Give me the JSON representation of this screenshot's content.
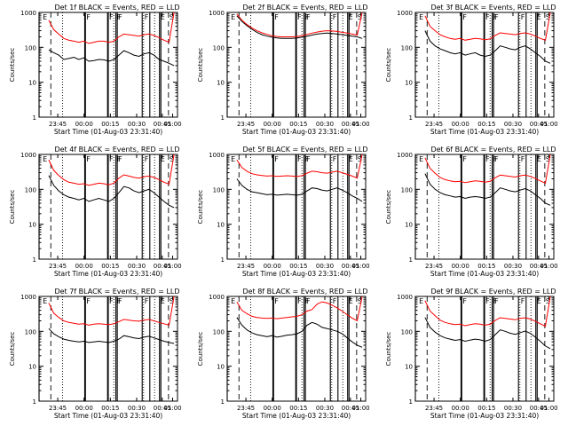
{
  "figure": {
    "ylabel": "Counts/sec",
    "xlabel": "Start Time (01-Aug-03 23:31:40)",
    "colors": {
      "events": "#000000",
      "lld": "#ff0000",
      "axes": "#000000"
    }
  },
  "chart_data": [
    {
      "type": "line",
      "title": "Det 1f BLACK = Events, RED = LLD",
      "ylabel": "Counts/sec",
      "xlabel": "Start Time (01-Aug-03 23:31:40)",
      "yscale": "log",
      "ylim": [
        1,
        1000
      ],
      "yticks": [
        "1",
        "10",
        "100",
        "1000"
      ],
      "xticks": [
        "23:45",
        "00:00",
        "00:15",
        "00:30",
        "00:45",
        "01:00"
      ],
      "marker_labels": [
        "E",
        "F",
        "F",
        "F",
        "F",
        "F",
        "E",
        "S"
      ],
      "series": [
        {
          "name": "Events",
          "values": [
            85,
            70,
            60,
            45,
            48,
            52,
            45,
            50,
            40,
            42,
            45,
            44,
            40,
            45,
            60,
            80,
            70,
            60,
            55,
            65,
            70,
            60,
            45,
            40,
            35,
            30
          ]
        },
        {
          "name": "LLD",
          "values": [
            600,
            320,
            240,
            180,
            160,
            150,
            140,
            150,
            130,
            140,
            150,
            150,
            140,
            150,
            200,
            240,
            230,
            220,
            210,
            230,
            240,
            220,
            190,
            160,
            140,
            1000
          ]
        }
      ]
    },
    {
      "type": "line",
      "title": "Det 2f BLACK = Events, RED = LLD",
      "ylabel": "Counts/sec",
      "xlabel": "Start Time (01-Aug-03 23:31:40)",
      "yscale": "log",
      "ylim": [
        1,
        1000
      ],
      "yticks": [
        "1",
        "10",
        "100",
        "1000"
      ],
      "xticks": [
        "23:45",
        "00:00",
        "00:15",
        "00:30",
        "00:45",
        "01:00"
      ],
      "marker_labels": [
        "E",
        "F",
        "F",
        "F",
        "F",
        "F",
        "E",
        "S"
      ],
      "series": [
        {
          "name": "Events",
          "values": [
            800,
            550,
            420,
            330,
            270,
            230,
            210,
            195,
            185,
            180,
            180,
            180,
            185,
            195,
            210,
            225,
            240,
            250,
            255,
            250,
            240,
            230,
            220,
            210,
            200,
            180
          ]
        },
        {
          "name": "LLD",
          "values": [
            900,
            600,
            450,
            360,
            300,
            260,
            235,
            215,
            205,
            200,
            200,
            200,
            205,
            215,
            235,
            255,
            275,
            290,
            300,
            295,
            285,
            270,
            255,
            240,
            225,
            1000
          ]
        }
      ]
    },
    {
      "type": "line",
      "title": "Det 3f BLACK = Events, RED = LLD",
      "ylabel": "Counts/sec",
      "xlabel": "Start Time (01-Aug-03 23:31:40)",
      "yscale": "log",
      "ylim": [
        1,
        1000
      ],
      "yticks": [
        "1",
        "10",
        "100",
        "1000"
      ],
      "xticks": [
        "23:45",
        "00:00",
        "00:15",
        "00:30",
        "00:45",
        "01:00"
      ],
      "marker_labels": [
        "E",
        "F",
        "F",
        "F",
        "F",
        "F",
        "E",
        "S"
      ],
      "series": [
        {
          "name": "Events",
          "values": [
            300,
            150,
            110,
            90,
            80,
            70,
            65,
            70,
            60,
            65,
            70,
            60,
            55,
            60,
            80,
            110,
            100,
            90,
            85,
            100,
            110,
            90,
            70,
            55,
            40,
            35
          ]
        },
        {
          "name": "LLD",
          "values": [
            800,
            400,
            300,
            230,
            200,
            180,
            170,
            180,
            160,
            170,
            180,
            175,
            165,
            175,
            220,
            260,
            250,
            240,
            230,
            250,
            260,
            240,
            210,
            180,
            160,
            1000
          ]
        }
      ]
    },
    {
      "type": "line",
      "title": "Det 4f BLACK = Events, RED = LLD",
      "ylabel": "Counts/sec",
      "xlabel": "Start Time (01-Aug-03 23:31:40)",
      "yscale": "log",
      "ylim": [
        1,
        1000
      ],
      "yticks": [
        "1",
        "10",
        "100",
        "1000"
      ],
      "xticks": [
        "23:45",
        "00:00",
        "00:15",
        "00:30",
        "00:45",
        "01:00"
      ],
      "marker_labels": [
        "E",
        "F",
        "F",
        "F",
        "F",
        "F",
        "E",
        "S"
      ],
      "series": [
        {
          "name": "Events",
          "values": [
            250,
            130,
            90,
            70,
            60,
            55,
            50,
            55,
            45,
            50,
            55,
            50,
            45,
            55,
            80,
            120,
            110,
            90,
            80,
            90,
            100,
            80,
            60,
            45,
            35,
            30
          ]
        },
        {
          "name": "LLD",
          "values": [
            700,
            350,
            250,
            190,
            160,
            150,
            140,
            145,
            130,
            140,
            150,
            145,
            135,
            150,
            210,
            260,
            240,
            220,
            210,
            230,
            240,
            220,
            190,
            160,
            140,
            1000
          ]
        }
      ]
    },
    {
      "type": "line",
      "title": "Det 5f BLACK = Events, RED = LLD",
      "ylabel": "Counts/sec",
      "xlabel": "Start Time (01-Aug-03 23:31:40)",
      "yscale": "log",
      "ylim": [
        1,
        1000
      ],
      "yticks": [
        "1",
        "10",
        "100",
        "1000"
      ],
      "xticks": [
        "23:45",
        "00:00",
        "00:15",
        "00:30",
        "00:45",
        "01:00"
      ],
      "marker_labels": [
        "E",
        "F",
        "F",
        "F",
        "F",
        "F",
        "E",
        "S"
      ],
      "series": [
        {
          "name": "Events",
          "values": [
            200,
            130,
            100,
            85,
            80,
            75,
            70,
            72,
            68,
            70,
            72,
            70,
            68,
            72,
            90,
            110,
            105,
            95,
            90,
            100,
            110,
            95,
            80,
            65,
            55,
            45
          ]
        },
        {
          "name": "LLD",
          "values": [
            700,
            420,
            330,
            280,
            260,
            250,
            240,
            245,
            235,
            240,
            245,
            240,
            235,
            245,
            290,
            330,
            320,
            300,
            290,
            310,
            330,
            300,
            270,
            240,
            210,
            1000
          ]
        }
      ]
    },
    {
      "type": "line",
      "title": "Det 6f BLACK = Events, RED = LLD",
      "ylabel": "Counts/sec",
      "xlabel": "Start Time (01-Aug-03 23:31:40)",
      "yscale": "log",
      "ylim": [
        1,
        1000
      ],
      "yticks": [
        "1",
        "10",
        "100",
        "1000"
      ],
      "xticks": [
        "23:45",
        "00:00",
        "00:15",
        "00:30",
        "00:45",
        "01:00"
      ],
      "marker_labels": [
        "E",
        "F",
        "F",
        "F",
        "F",
        "F",
        "E",
        "S"
      ],
      "series": [
        {
          "name": "Events",
          "values": [
            280,
            140,
            100,
            80,
            70,
            65,
            60,
            62,
            55,
            60,
            62,
            60,
            55,
            60,
            80,
            110,
            100,
            90,
            85,
            95,
            105,
            90,
            70,
            55,
            40,
            35
          ]
        },
        {
          "name": "LLD",
          "values": [
            800,
            400,
            290,
            220,
            190,
            175,
            165,
            170,
            155,
            165,
            175,
            170,
            160,
            170,
            215,
            255,
            245,
            235,
            225,
            245,
            255,
            235,
            205,
            175,
            150,
            1000
          ]
        }
      ]
    },
    {
      "type": "line",
      "title": "Det 7f BLACK = Events, RED = LLD",
      "ylabel": "Counts/sec",
      "xlabel": "Start Time (01-Aug-03 23:31:40)",
      "yscale": "log",
      "ylim": [
        1,
        1000
      ],
      "yticks": [
        "1",
        "10",
        "100",
        "1000"
      ],
      "xticks": [
        "23:45",
        "00:00",
        "00:15",
        "00:30",
        "00:45",
        "01:00"
      ],
      "marker_labels": [
        "E",
        "F",
        "F",
        "F",
        "F",
        "F",
        "E",
        "S"
      ],
      "series": [
        {
          "name": "Events",
          "values": [
            120,
            85,
            70,
            60,
            55,
            52,
            50,
            52,
            48,
            50,
            52,
            50,
            48,
            52,
            60,
            75,
            70,
            65,
            62,
            68,
            72,
            65,
            58,
            52,
            48,
            45
          ]
        },
        {
          "name": "LLD",
          "values": [
            650,
            330,
            250,
            200,
            180,
            170,
            160,
            165,
            150,
            160,
            165,
            160,
            155,
            165,
            190,
            220,
            210,
            200,
            195,
            210,
            220,
            200,
            180,
            165,
            150,
            1000
          ]
        }
      ]
    },
    {
      "type": "line",
      "title": "Det 8f BLACK = Events, RED = LLD",
      "ylabel": "Counts/sec",
      "xlabel": "Start Time (01-Aug-03 23:31:40)",
      "yscale": "log",
      "ylim": [
        1,
        1000
      ],
      "yticks": [
        "1",
        "10",
        "100",
        "1000"
      ],
      "xticks": [
        "23:45",
        "00:00",
        "00:15",
        "00:30",
        "00:45",
        "01:00"
      ],
      "marker_labels": [
        "E",
        "F",
        "F",
        "F",
        "F",
        "F",
        "E",
        "S"
      ],
      "series": [
        {
          "name": "Events",
          "values": [
            250,
            150,
            110,
            90,
            80,
            75,
            70,
            75,
            68,
            72,
            78,
            80,
            85,
            100,
            150,
            180,
            160,
            130,
            120,
            110,
            100,
            85,
            65,
            50,
            40,
            35
          ]
        },
        {
          "name": "LLD",
          "values": [
            700,
            400,
            320,
            270,
            250,
            240,
            235,
            240,
            230,
            240,
            250,
            260,
            270,
            300,
            380,
            420,
            600,
            700,
            650,
            560,
            470,
            380,
            300,
            240,
            200,
            1000
          ]
        }
      ]
    },
    {
      "type": "line",
      "title": "Det 9f BLACK = Events, RED = LLD",
      "ylabel": "Counts/sec",
      "xlabel": "Start Time (01-Aug-03 23:31:40)",
      "yscale": "log",
      "ylim": [
        1,
        1000
      ],
      "yticks": [
        "1",
        "10",
        "100",
        "1000"
      ],
      "xticks": [
        "23:45",
        "00:00",
        "00:15",
        "00:30",
        "00:45",
        "01:00"
      ],
      "marker_labels": [
        "E",
        "F",
        "F",
        "F",
        "F",
        "F",
        "E",
        "S"
      ],
      "series": [
        {
          "name": "Events",
          "values": [
            250,
            130,
            95,
            75,
            65,
            60,
            55,
            58,
            52,
            56,
            60,
            57,
            52,
            58,
            80,
            110,
            100,
            88,
            82,
            92,
            102,
            88,
            68,
            52,
            38,
            32
          ]
        },
        {
          "name": "LLD",
          "values": [
            750,
            380,
            280,
            210,
            180,
            165,
            155,
            160,
            145,
            155,
            165,
            160,
            150,
            160,
            205,
            245,
            235,
            225,
            215,
            235,
            245,
            225,
            195,
            165,
            140,
            1000
          ]
        }
      ]
    }
  ]
}
